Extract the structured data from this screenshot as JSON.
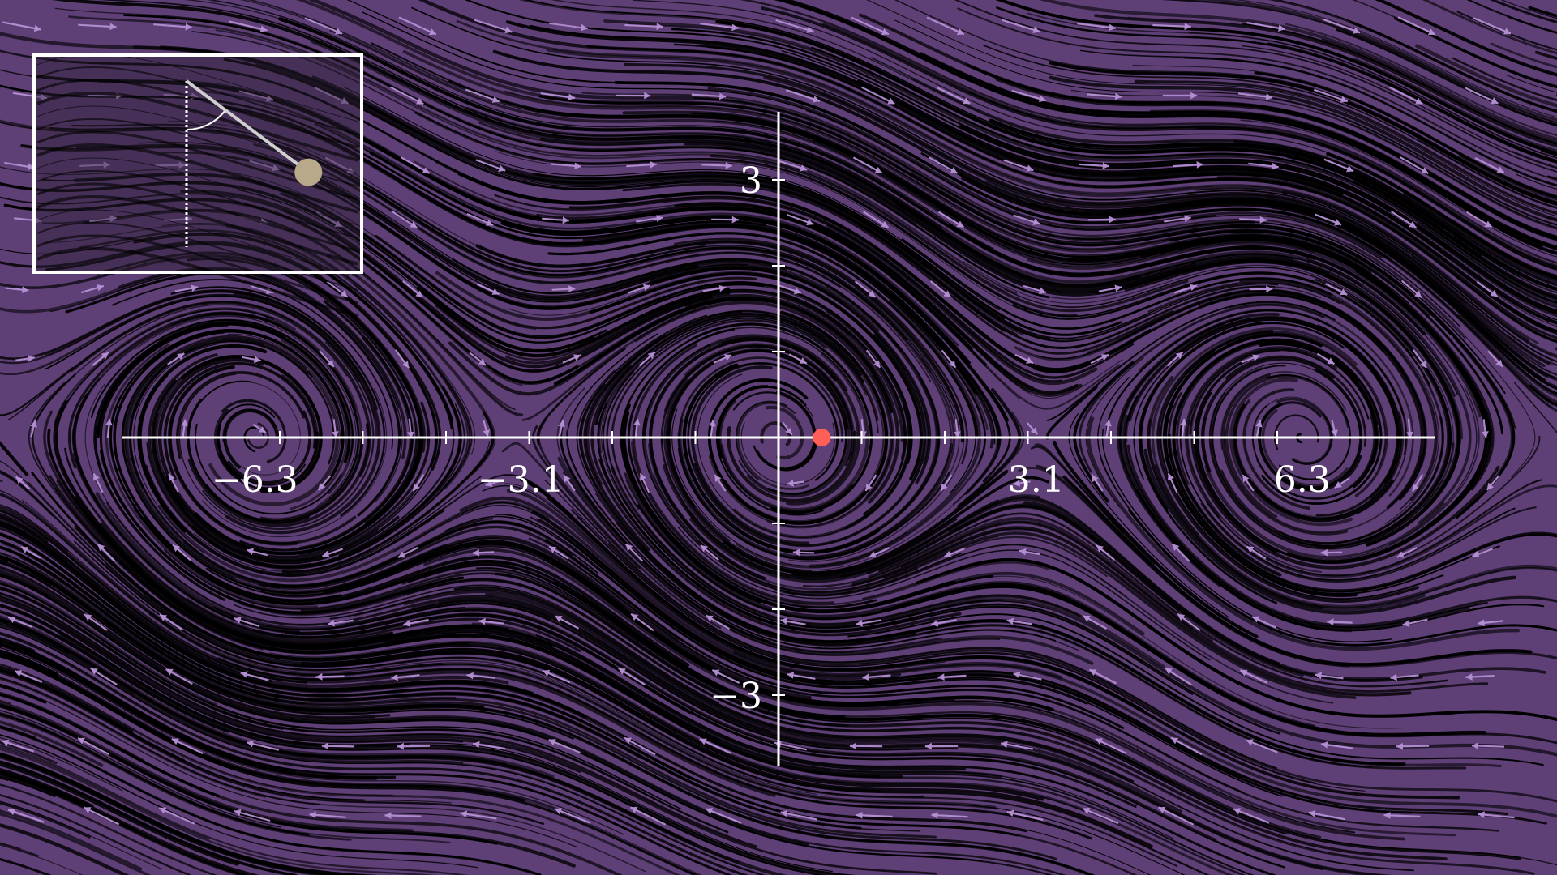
{
  "colors": {
    "background": "#5e3f76",
    "streamline": "#000000",
    "arrow": "#b48fd3",
    "axis": "#ffffff",
    "state_point": "#ff5f57",
    "inset_frame": "#ffffff",
    "pendulum_rod": "#cfcfcf",
    "pendulum_bob": "#b8a98a"
  },
  "axes": {
    "x_ticks": [
      {
        "value": -6.3,
        "label": "−6.3"
      },
      {
        "value": -3.1,
        "label": "−3.1"
      },
      {
        "value": 3.1,
        "label": "3.1"
      },
      {
        "value": 6.3,
        "label": "6.3"
      }
    ],
    "y_ticks": [
      {
        "value": 3,
        "label": "3"
      },
      {
        "value": -3,
        "label": "−3"
      }
    ]
  },
  "state_point": {
    "theta": 0.52,
    "omega": 0.0
  },
  "inset": {
    "icon": "pendulum-icon",
    "angle_rad": 0.85
  }
}
